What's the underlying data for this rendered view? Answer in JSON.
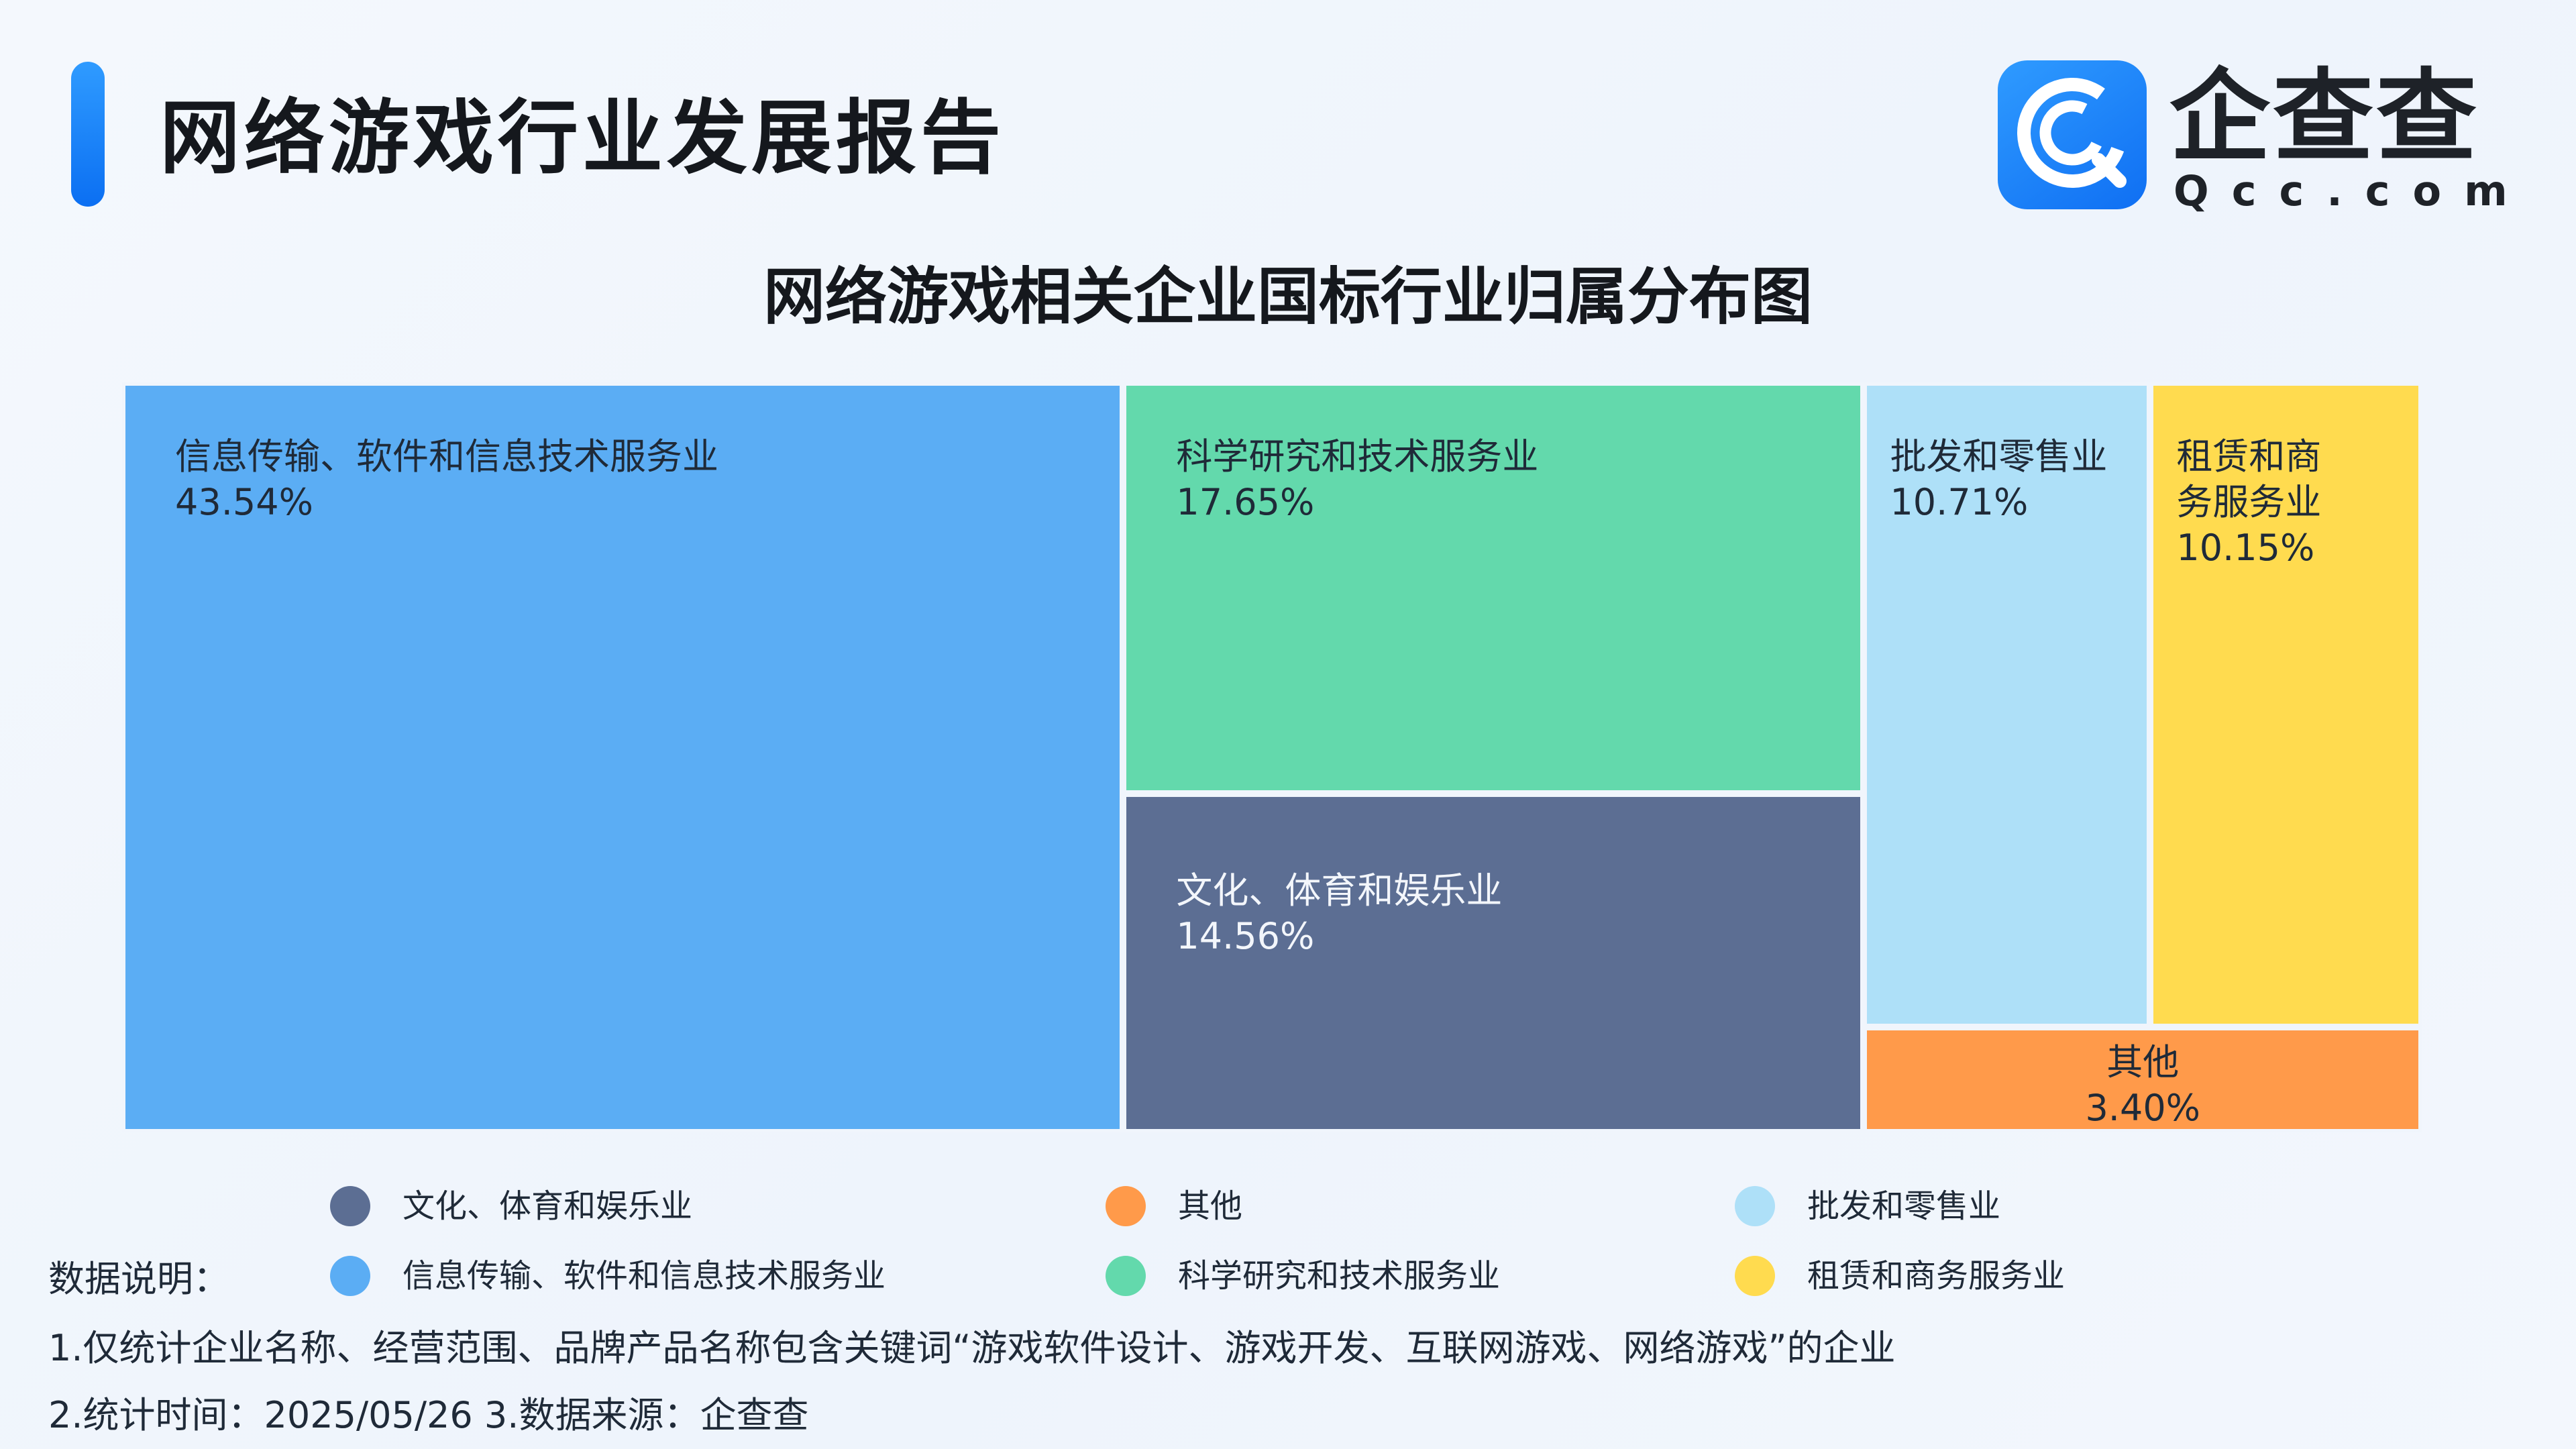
{
  "header": {
    "title": "网络游戏行业发展报告",
    "logo_cn": "企查查",
    "logo_en": "Qcc.com"
  },
  "colors": {
    "accent": "#1681ff",
    "background": "#eef4fc"
  },
  "chart_data": {
    "type": "treemap",
    "title": "网络游戏相关企业国标行业归属分布图",
    "unit": "%",
    "items": [
      {
        "name": "信息传输、软件和信息技术服务业",
        "value": 43.54,
        "value_label": "43.54%",
        "color": "#5badf4"
      },
      {
        "name": "科学研究和技术服务业",
        "value": 17.65,
        "value_label": "17.65%",
        "color": "#63d9ac"
      },
      {
        "name": "文化、体育和娱乐业",
        "value": 14.56,
        "value_label": "14.56%",
        "color": "#5c6e93"
      },
      {
        "name": "批发和零售业",
        "value": 10.71,
        "value_label": "10.71%",
        "color": "#aee0f8"
      },
      {
        "name": "租赁和商务服务业",
        "value": 10.15,
        "value_label": "10.15%",
        "color": "#ffdb4f"
      },
      {
        "name": "其他",
        "value": 3.4,
        "value_label": "3.40%",
        "color": "#ff9a4a"
      }
    ],
    "legend": [
      {
        "name": "文化、体育和娱乐业",
        "color": "#5c6e93"
      },
      {
        "name": "其他",
        "color": "#ff9a4a"
      },
      {
        "name": "批发和零售业",
        "color": "#aee0f8"
      },
      {
        "name": "信息传输、软件和信息技术服务业",
        "color": "#5badf4"
      },
      {
        "name": "科学研究和技术服务业",
        "color": "#63d9ac"
      },
      {
        "name": "租赁和商务服务业",
        "color": "#ffdb4f"
      }
    ]
  },
  "notes": {
    "heading": "数据说明：",
    "line1": "1.仅统计企业名称、经营范围、品牌产品名称包含关键词“游戏软件设计、游戏开发、互联网游戏、网络游戏”的企业",
    "line2": "2.统计时间：2025/05/26      3.数据来源：企查查"
  }
}
